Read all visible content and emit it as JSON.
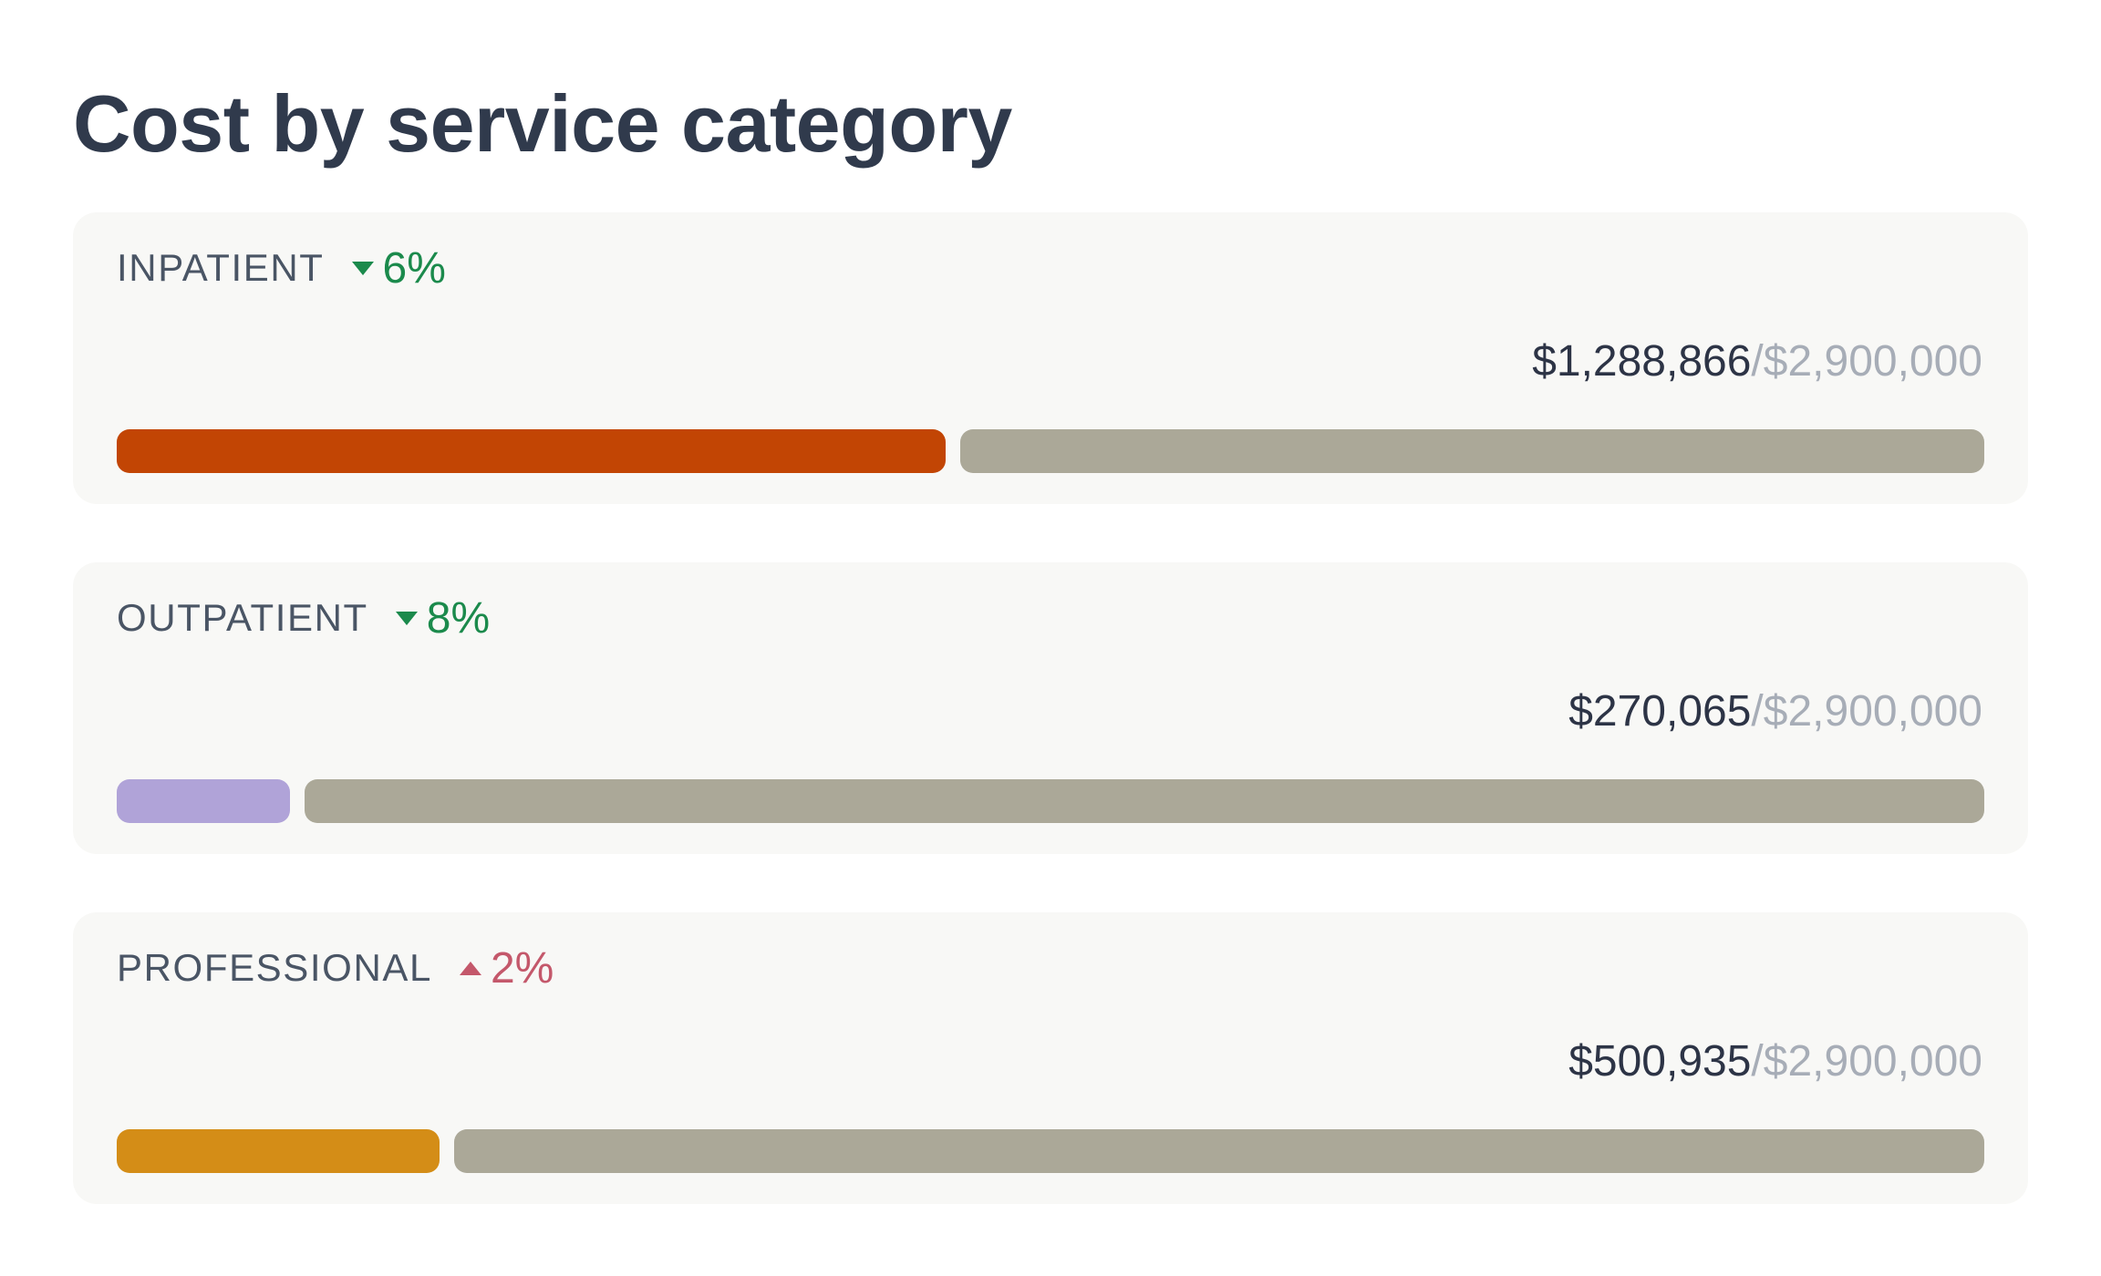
{
  "title": "Cost by service category",
  "colors": {
    "decrease": "#1b8a4c",
    "increase": "#c4586b",
    "remaining": "#aba898"
  },
  "categories": [
    {
      "label": "INPATIENT",
      "direction": "down",
      "change": "6%",
      "spent": "$1,288,866",
      "separator": "/",
      "budget": "$2,900,000",
      "fill_fraction": 0.444,
      "fill_color": "#c24504"
    },
    {
      "label": "OUTPATIENT",
      "direction": "down",
      "change": "8%",
      "spent": "$270,065",
      "separator": "/",
      "budget": "$2,900,000",
      "fill_fraction": 0.093,
      "fill_color": "#b0a3d8"
    },
    {
      "label": "PROFESSIONAL",
      "direction": "up",
      "change": "2%",
      "spent": "$500,935",
      "separator": "/",
      "budget": "$2,900,000",
      "fill_fraction": 0.173,
      "fill_color": "#d48d17"
    }
  ]
}
